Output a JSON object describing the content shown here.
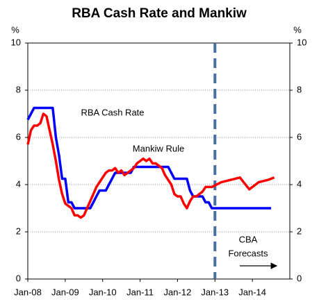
{
  "chart_data": {
    "type": "line",
    "title": "RBA Cash Rate and Mankiw",
    "y_unit": "%",
    "y2_unit": "%",
    "xlim": [
      "2008-01",
      "2015-01"
    ],
    "xticks": [
      {
        "value": "2008-01",
        "label": "Jan-08"
      },
      {
        "value": "2009-01",
        "label": "Jan-09"
      },
      {
        "value": "2010-01",
        "label": "Jan-10"
      },
      {
        "value": "2011-01",
        "label": "Jan-11"
      },
      {
        "value": "2012-01",
        "label": "Jan-12"
      },
      {
        "value": "2013-01",
        "label": "Jan-13"
      },
      {
        "value": "2014-01",
        "label": "Jan-14"
      }
    ],
    "ylim": [
      0,
      10
    ],
    "yticks": [
      0,
      2,
      4,
      6,
      8,
      10
    ],
    "y2lim": [
      0,
      10
    ],
    "y2ticks": [
      0,
      2,
      4,
      6,
      8,
      10
    ],
    "grid": true,
    "forecast_line": {
      "x": "2013-01",
      "color": "#4a6fa5",
      "label_lines": [
        "CBA",
        "Forecasts"
      ]
    },
    "series": [
      {
        "name": "RBA Cash Rate",
        "color": "#0000ff",
        "x": [
          "2008-01",
          "2008-02",
          "2008-03",
          "2008-09",
          "2008-10",
          "2008-11",
          "2008-12",
          "2009-01",
          "2009-02",
          "2009-03",
          "2009-04",
          "2009-09",
          "2009-10",
          "2009-11",
          "2009-12",
          "2010-02",
          "2010-03",
          "2010-04",
          "2010-05",
          "2010-10",
          "2010-11",
          "2011-10",
          "2011-11",
          "2011-12",
          "2012-04",
          "2012-05",
          "2012-06",
          "2012-09",
          "2012-10",
          "2012-11",
          "2012-12",
          "2014-07"
        ],
        "values": [
          6.75,
          7.0,
          7.25,
          7.25,
          6.0,
          5.25,
          4.25,
          4.25,
          3.25,
          3.25,
          3.0,
          3.0,
          3.25,
          3.5,
          3.75,
          3.75,
          4.0,
          4.25,
          4.5,
          4.5,
          4.75,
          4.75,
          4.5,
          4.25,
          4.25,
          3.75,
          3.5,
          3.5,
          3.25,
          3.25,
          3.0,
          3.0
        ]
      },
      {
        "name": "Mankiw Rule",
        "color": "#ff0000",
        "x": [
          "2008-01",
          "2008-02",
          "2008-03",
          "2008-04",
          "2008-05",
          "2008-06",
          "2008-07",
          "2008-08",
          "2008-09",
          "2008-10",
          "2008-11",
          "2008-12",
          "2009-01",
          "2009-02",
          "2009-03",
          "2009-04",
          "2009-05",
          "2009-06",
          "2009-07",
          "2009-08",
          "2009-09",
          "2009-10",
          "2009-11",
          "2009-12",
          "2010-01",
          "2010-02",
          "2010-03",
          "2010-04",
          "2010-05",
          "2010-06",
          "2010-07",
          "2010-08",
          "2010-09",
          "2010-10",
          "2010-11",
          "2010-12",
          "2011-01",
          "2011-02",
          "2011-03",
          "2011-04",
          "2011-05",
          "2011-06",
          "2011-07",
          "2011-08",
          "2011-09",
          "2011-10",
          "2011-11",
          "2011-12",
          "2012-01",
          "2012-02",
          "2012-03",
          "2012-04",
          "2012-05",
          "2012-06",
          "2012-07",
          "2012-08",
          "2012-09",
          "2012-10",
          "2012-11",
          "2012-12",
          "2013-03",
          "2013-06",
          "2013-09",
          "2013-12",
          "2014-03",
          "2014-06",
          "2014-08"
        ],
        "values": [
          5.7,
          6.3,
          6.5,
          6.5,
          6.6,
          7.0,
          6.9,
          6.3,
          5.7,
          5.0,
          4.2,
          3.6,
          3.2,
          3.1,
          3.0,
          2.7,
          2.7,
          2.6,
          2.7,
          3.0,
          3.3,
          3.6,
          3.9,
          4.1,
          4.3,
          4.5,
          4.6,
          4.6,
          4.7,
          4.5,
          4.6,
          4.4,
          4.5,
          4.6,
          4.7,
          4.9,
          5.0,
          5.1,
          5.0,
          5.1,
          4.9,
          4.9,
          4.8,
          4.7,
          4.4,
          4.2,
          4.0,
          3.6,
          3.5,
          3.5,
          3.2,
          3.0,
          3.3,
          3.5,
          3.5,
          3.6,
          3.7,
          3.9,
          3.9,
          3.9,
          4.1,
          4.2,
          4.3,
          3.8,
          4.1,
          4.2,
          4.3
        ]
      }
    ]
  }
}
